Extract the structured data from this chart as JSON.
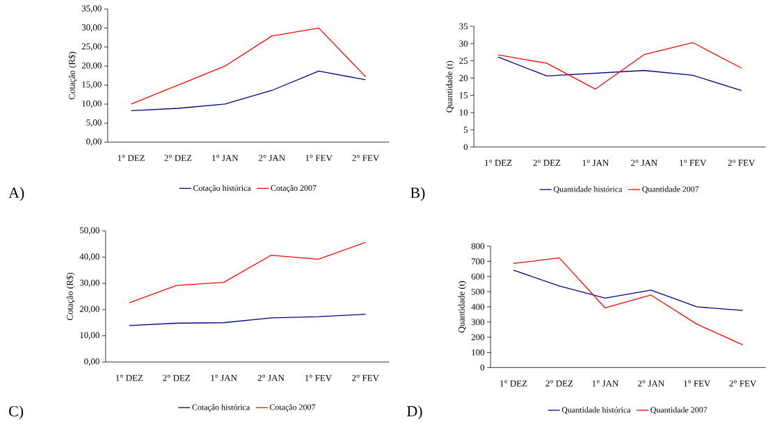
{
  "chart_data": [
    {
      "type": "line",
      "title": "A)",
      "categories": [
        "1° DEZ",
        "2° DEZ",
        "1° JAN",
        "2° JAN",
        "1° FEV",
        "2° FEV"
      ],
      "ylabel": "Cotação (R$)",
      "ylim": [
        0,
        35
      ],
      "yticks": [
        {
          "value": 0,
          "label": "0,00"
        },
        {
          "value": 5,
          "label": "5,00"
        },
        {
          "value": 10,
          "label": "10,00"
        },
        {
          "value": 15,
          "label": "15,00"
        },
        {
          "value": 20,
          "label": "20,00"
        },
        {
          "value": 25,
          "label": "25,00"
        },
        {
          "value": 30,
          "label": "30,00"
        },
        {
          "value": 35,
          "label": "35,00"
        }
      ],
      "legend": "bottom",
      "series": [
        {
          "name": "Cotação histórica",
          "color": "#000080",
          "values": [
            8.3,
            8.9,
            10.0,
            13.6,
            18.7,
            16.4
          ]
        },
        {
          "name": "Cotação 2007",
          "color": "#ff0000",
          "values": [
            10.0,
            15.0,
            20.0,
            27.9,
            30.0,
            17.2
          ]
        }
      ]
    },
    {
      "type": "line",
      "title": "B)",
      "categories": [
        "1° DEZ",
        "2° DEZ",
        "1° JAN",
        "2° JAN",
        "1° FEV",
        "2° FEV"
      ],
      "ylabel": "Quantidade (t)",
      "ylim": [
        0,
        35
      ],
      "yticks": [
        0,
        5,
        10,
        15,
        20,
        25,
        30,
        35
      ],
      "legend": "bottom",
      "series": [
        {
          "name": "Quantidade histórica",
          "color": "#000080",
          "values": [
            26.1,
            20.6,
            21.4,
            22.2,
            20.8,
            16.4
          ]
        },
        {
          "name": "Quantidade 2007",
          "color": "#ff0000",
          "values": [
            26.7,
            24.3,
            16.8,
            26.8,
            30.3,
            22.9
          ]
        }
      ]
    },
    {
      "type": "line",
      "title": "C)",
      "categories": [
        "1° DEZ",
        "2° DEZ",
        "1° JAN",
        "2° JAN",
        "1° FEV",
        "2° FEV"
      ],
      "ylabel": "Cotação (R$)",
      "ylim": [
        0,
        50
      ],
      "yticks": [
        {
          "value": 0,
          "label": "0,00"
        },
        {
          "value": 10,
          "label": "10,00"
        },
        {
          "value": 20,
          "label": "20,00"
        },
        {
          "value": 30,
          "label": "30,00"
        },
        {
          "value": 40,
          "label": "40,00"
        },
        {
          "value": 50,
          "label": "50,00"
        }
      ],
      "legend": "bottom",
      "series": [
        {
          "name": "Cotação histórica",
          "color": "#000080",
          "values": [
            13.9,
            14.8,
            15.0,
            16.8,
            17.3,
            18.2
          ]
        },
        {
          "name": "Cotação 2007",
          "color": "#ff0000",
          "values": [
            22.6,
            29.2,
            30.4,
            40.7,
            39.2,
            45.6
          ]
        }
      ]
    },
    {
      "type": "line",
      "title": "D)",
      "categories": [
        "1° DEZ",
        "2° DEZ",
        "1° JAN",
        "2° JAN",
        "1° FEV",
        "2° FEV"
      ],
      "ylabel": "Quantidade (t)",
      "ylim": [
        0,
        800
      ],
      "yticks": [
        0,
        100,
        200,
        300,
        400,
        500,
        600,
        700,
        800
      ],
      "legend": "bottom",
      "series": [
        {
          "name": "Quantidade histórica",
          "color": "#000080",
          "values": [
            642,
            538,
            458,
            510,
            400,
            376
          ]
        },
        {
          "name": "Quantidade 2007",
          "color": "#ff0000",
          "values": [
            686,
            723,
            393,
            478,
            286,
            150
          ]
        }
      ]
    }
  ]
}
